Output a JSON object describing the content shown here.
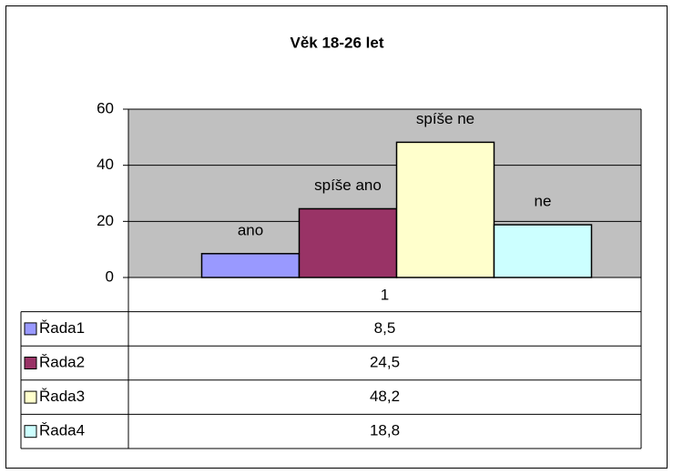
{
  "chart_data": {
    "type": "bar",
    "title": "Věk 18-26 let",
    "categories": [
      "1"
    ],
    "series": [
      {
        "name": "Řada1",
        "color": "#9999ff",
        "values": [
          8.5
        ],
        "value_labels": [
          "8,5"
        ],
        "label": "ano"
      },
      {
        "name": "Řada2",
        "color": "#993366",
        "values": [
          24.5
        ],
        "value_labels": [
          "24,5"
        ],
        "label": "spíše ano"
      },
      {
        "name": "Řada3",
        "color": "#ffffcc",
        "values": [
          48.2
        ],
        "value_labels": [
          "48,2"
        ],
        "label": "spíše ne"
      },
      {
        "name": "Řada4",
        "color": "#ccffff",
        "values": [
          18.8
        ],
        "value_labels": [
          "18,8"
        ],
        "label": "ne"
      }
    ],
    "ylim": [
      0,
      60
    ],
    "yticks": [
      0,
      20,
      40,
      60
    ],
    "grid": true,
    "plot_background": "#c0c0c0"
  }
}
